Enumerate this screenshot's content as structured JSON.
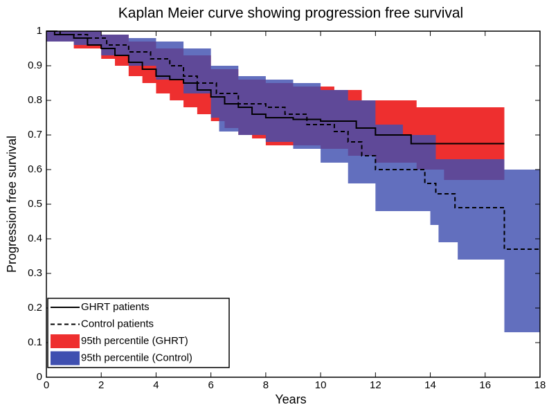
{
  "chart_data": {
    "type": "kaplan-meier",
    "title": "Kaplan Meier curve showing progression free survival",
    "x_label": "Years",
    "y_label": "Progression free survival",
    "xlim": [
      0,
      18
    ],
    "ylim": [
      0,
      1
    ],
    "xticks": [
      0,
      2,
      4,
      6,
      8,
      10,
      12,
      14,
      16,
      18
    ],
    "yticks": [
      0,
      0.1,
      0.2,
      0.3,
      0.4,
      0.5,
      0.6,
      0.7,
      0.8,
      0.9,
      1
    ],
    "bands": [
      {
        "name": "95th percentile (GHRT)",
        "color": "#ee2f2f",
        "x": [
          0,
          1,
          2,
          2.5,
          3,
          3.5,
          4,
          4.5,
          5,
          5.5,
          6,
          6.5,
          7,
          7.5,
          8,
          9,
          10,
          10.5,
          11,
          11.5,
          12,
          13.5,
          14.5,
          16.7
        ],
        "lower": [
          0.97,
          0.95,
          0.92,
          0.9,
          0.87,
          0.85,
          0.82,
          0.8,
          0.78,
          0.76,
          0.74,
          0.72,
          0.7,
          0.69,
          0.67,
          0.67,
          0.66,
          0.66,
          0.64,
          0.64,
          0.62,
          0.6,
          0.57,
          0.57
        ],
        "upper": [
          1,
          1,
          0.99,
          0.99,
          0.97,
          0.97,
          0.95,
          0.95,
          0.93,
          0.93,
          0.89,
          0.89,
          0.86,
          0.86,
          0.85,
          0.84,
          0.84,
          0.83,
          0.83,
          0.8,
          0.8,
          0.78,
          0.78,
          0.78
        ]
      },
      {
        "name": "95th percentile (Control)",
        "color": "#3f4fb0",
        "x": [
          0,
          1,
          2,
          3,
          4,
          5,
          6,
          6.3,
          7,
          8,
          9,
          10,
          11,
          12,
          13,
          14,
          14.2,
          14.3,
          15,
          16.7,
          18
        ],
        "lower": [
          0.97,
          0.96,
          0.93,
          0.9,
          0.86,
          0.82,
          0.75,
          0.71,
          0.7,
          0.68,
          0.66,
          0.62,
          0.56,
          0.48,
          0.48,
          0.44,
          0.44,
          0.39,
          0.34,
          0.13,
          0.13
        ],
        "upper": [
          1,
          1,
          0.99,
          0.98,
          0.97,
          0.95,
          0.9,
          0.9,
          0.87,
          0.86,
          0.85,
          0.83,
          0.8,
          0.73,
          0.7,
          0.7,
          0.63,
          0.63,
          0.63,
          0.6,
          0.6
        ]
      }
    ],
    "series": [
      {
        "name": "GHRT patients",
        "color": "#000000",
        "dash": false,
        "x": [
          0,
          0.3,
          1,
          1.5,
          2,
          2.5,
          3,
          3.5,
          4,
          4.5,
          5,
          5.5,
          6,
          6.5,
          7,
          7.5,
          8,
          9,
          10,
          11.3,
          12,
          13.3,
          16.7
        ],
        "values": [
          1,
          0.99,
          0.98,
          0.96,
          0.95,
          0.93,
          0.91,
          0.89,
          0.87,
          0.86,
          0.85,
          0.83,
          0.81,
          0.79,
          0.78,
          0.76,
          0.75,
          0.745,
          0.74,
          0.72,
          0.7,
          0.675,
          0.675
        ]
      },
      {
        "name": "Control patients",
        "color": "#000000",
        "dash": true,
        "x": [
          0,
          0.5,
          1.5,
          2.2,
          3,
          3.8,
          4.5,
          5,
          5.5,
          6.2,
          7,
          8,
          8.7,
          9.5,
          10.5,
          11,
          11.5,
          12,
          13.8,
          14.2,
          14.9,
          16.7,
          18
        ],
        "values": [
          1,
          0.99,
          0.98,
          0.96,
          0.94,
          0.92,
          0.9,
          0.87,
          0.85,
          0.82,
          0.79,
          0.78,
          0.76,
          0.73,
          0.71,
          0.68,
          0.64,
          0.6,
          0.56,
          0.53,
          0.49,
          0.37,
          0.37
        ]
      }
    ],
    "legend": "lower left",
    "grid": false
  }
}
